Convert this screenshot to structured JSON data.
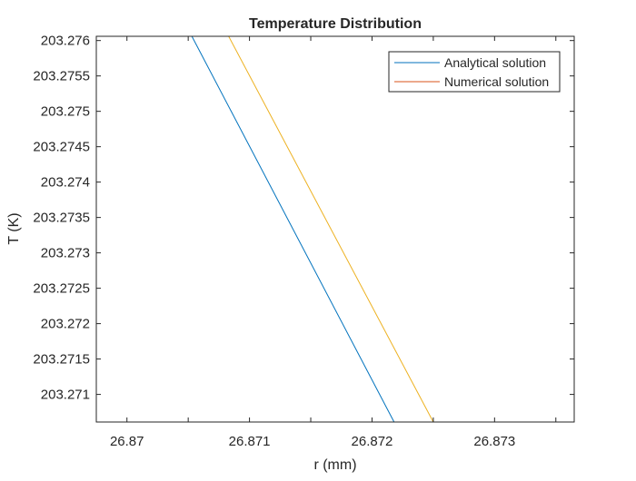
{
  "chart_data": {
    "type": "line",
    "title": "Temperature Distribution",
    "xlabel": "r (mm)",
    "ylabel": "T (K)",
    "xlim": [
      26.86975,
      26.87365
    ],
    "ylim": [
      203.27061,
      203.27606
    ],
    "x_ticks": [
      26.87,
      26.871,
      26.872,
      26.873
    ],
    "x_tick_labels": [
      "26.87",
      "26.871",
      "26.872",
      "26.873"
    ],
    "y_ticks": [
      203.271,
      203.2715,
      203.272,
      203.2725,
      203.273,
      203.2735,
      203.274,
      203.2745,
      203.275,
      203.2755,
      203.276
    ],
    "y_tick_labels": [
      "203.271",
      "203.2715",
      "203.272",
      "203.2725",
      "203.273",
      "203.2735",
      "203.274",
      "203.2745",
      "203.275",
      "203.2755",
      "203.276"
    ],
    "grid": false,
    "legend_position": "top-right",
    "legend_entries": [
      "Analytical solution",
      "Numerical solution"
    ],
    "series": [
      {
        "name": "Analytical solution",
        "legend_color": "#0072BD",
        "line_color": "#0072BD",
        "x": [
          26.87053,
          26.87218
        ],
        "y": [
          203.27606,
          203.27061
        ]
      },
      {
        "name": "Numerical solution",
        "legend_color": "#D95319",
        "line_color": "#EDB120",
        "x": [
          26.87083,
          26.8725
        ],
        "y": [
          203.27606,
          203.27061
        ]
      }
    ]
  }
}
